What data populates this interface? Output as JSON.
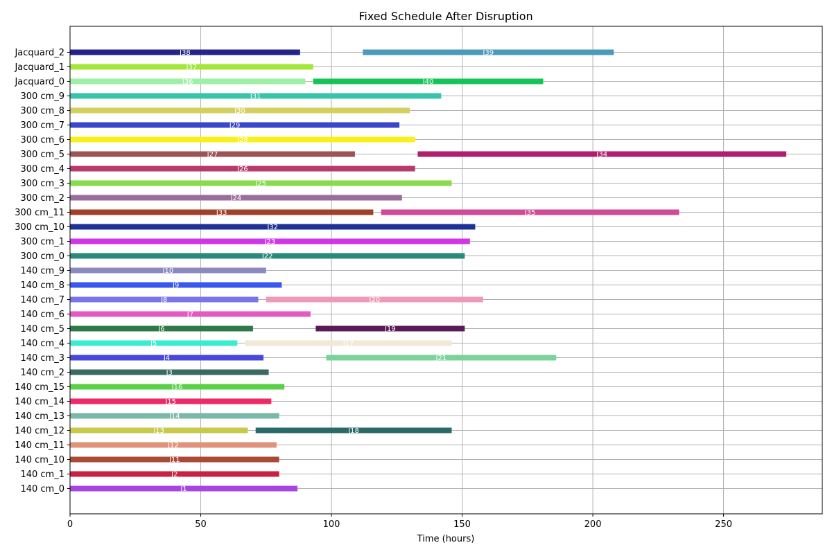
{
  "chart_data": {
    "type": "gantt",
    "title": "Fixed Schedule After Disruption",
    "xlabel": "Time (hours)",
    "ylabel": "",
    "xlim": [
      0,
      288
    ],
    "xticks": [
      0,
      50,
      100,
      150,
      200,
      250
    ],
    "grid": true,
    "machines": [
      "140 cm_0",
      "140 cm_1",
      "140 cm_10",
      "140 cm_11",
      "140 cm_12",
      "140 cm_13",
      "140 cm_14",
      "140 cm_15",
      "140 cm_2",
      "140 cm_3",
      "140 cm_4",
      "140 cm_5",
      "140 cm_6",
      "140 cm_7",
      "140 cm_8",
      "140 cm_9",
      "300 cm_0",
      "300 cm_1",
      "300 cm_10",
      "300 cm_11",
      "300 cm_2",
      "300 cm_3",
      "300 cm_4",
      "300 cm_5",
      "300 cm_6",
      "300 cm_7",
      "300 cm_8",
      "300 cm_9",
      "Jacquard_0",
      "Jacquard_1",
      "Jacquard_2"
    ],
    "tasks": [
      {
        "machine": "140 cm_0",
        "label": "J1",
        "start": 0,
        "end": 87,
        "color": "#a845e0"
      },
      {
        "machine": "140 cm_1",
        "label": "J2",
        "start": 0,
        "end": 80,
        "color": "#cc2040"
      },
      {
        "machine": "140 cm_10",
        "label": "J11",
        "start": 0,
        "end": 80,
        "color": "#a84a35"
      },
      {
        "machine": "140 cm_11",
        "label": "J12",
        "start": 0,
        "end": 79,
        "color": "#e0937a"
      },
      {
        "machine": "140 cm_12",
        "label": "J13",
        "start": 0,
        "end": 68,
        "color": "#c8c84a"
      },
      {
        "machine": "140 cm_12",
        "label": "J18",
        "start": 71,
        "end": 146,
        "color": "#2a6a66"
      },
      {
        "machine": "140 cm_13",
        "label": "J14",
        "start": 0,
        "end": 80,
        "color": "#7ab8a8"
      },
      {
        "machine": "140 cm_14",
        "label": "J15",
        "start": 0,
        "end": 77,
        "color": "#ec2a6a"
      },
      {
        "machine": "140 cm_15",
        "label": "J16",
        "start": 0,
        "end": 82,
        "color": "#5ad048"
      },
      {
        "machine": "140 cm_2",
        "label": "J3",
        "start": 0,
        "end": 76,
        "color": "#3a6a62"
      },
      {
        "machine": "140 cm_3",
        "label": "J4",
        "start": 0,
        "end": 74,
        "color": "#4848dc"
      },
      {
        "machine": "140 cm_3",
        "label": "J21",
        "start": 98,
        "end": 186,
        "color": "#7ad49a"
      },
      {
        "machine": "140 cm_4",
        "label": "J5",
        "start": 0,
        "end": 64,
        "color": "#3aecd2"
      },
      {
        "machine": "140 cm_4",
        "label": "J17",
        "start": 67,
        "end": 146,
        "color": "#f2e8d8"
      },
      {
        "machine": "140 cm_5",
        "label": "J6",
        "start": 0,
        "end": 70,
        "color": "#2e7a46"
      },
      {
        "machine": "140 cm_5",
        "label": "J19",
        "start": 94,
        "end": 151,
        "color": "#5a1a56"
      },
      {
        "machine": "140 cm_6",
        "label": "J7",
        "start": 0,
        "end": 92,
        "color": "#e658c4"
      },
      {
        "machine": "140 cm_7",
        "label": "J8",
        "start": 0,
        "end": 72,
        "color": "#7a74e8"
      },
      {
        "machine": "140 cm_7",
        "label": "J20",
        "start": 75,
        "end": 158,
        "color": "#ec9ab8"
      },
      {
        "machine": "140 cm_8",
        "label": "J9",
        "start": 0,
        "end": 81,
        "color": "#3858f0"
      },
      {
        "machine": "140 cm_9",
        "label": "J10",
        "start": 0,
        "end": 75,
        "color": "#8a8ac0"
      },
      {
        "machine": "300 cm_0",
        "label": "J22",
        "start": 0,
        "end": 151,
        "color": "#2a8a7a"
      },
      {
        "machine": "300 cm_1",
        "label": "J23",
        "start": 0,
        "end": 153,
        "color": "#d036e6"
      },
      {
        "machine": "300 cm_10",
        "label": "J32",
        "start": 0,
        "end": 155,
        "color": "#1e3296"
      },
      {
        "machine": "300 cm_11",
        "label": "J33",
        "start": 0,
        "end": 116,
        "color": "#a04028"
      },
      {
        "machine": "300 cm_11",
        "label": "J35",
        "start": 119,
        "end": 233,
        "color": "#d04a98"
      },
      {
        "machine": "300 cm_2",
        "label": "J24",
        "start": 0,
        "end": 127,
        "color": "#9a6e9c"
      },
      {
        "machine": "300 cm_3",
        "label": "J25",
        "start": 0,
        "end": 146,
        "color": "#86dc4a"
      },
      {
        "machine": "300 cm_4",
        "label": "J26",
        "start": 0,
        "end": 132,
        "color": "#b83a6a"
      },
      {
        "machine": "300 cm_5",
        "label": "J27",
        "start": 0,
        "end": 109,
        "color": "#9e5454"
      },
      {
        "machine": "300 cm_5",
        "label": "J34",
        "start": 133,
        "end": 274,
        "color": "#b01e6e"
      },
      {
        "machine": "300 cm_6",
        "label": "J28",
        "start": 0,
        "end": 132,
        "color": "#f8f01a"
      },
      {
        "machine": "300 cm_7",
        "label": "J29",
        "start": 0,
        "end": 126,
        "color": "#3a46cc"
      },
      {
        "machine": "300 cm_8",
        "label": "J30",
        "start": 0,
        "end": 130,
        "color": "#d4d060"
      },
      {
        "machine": "300 cm_9",
        "label": "J31",
        "start": 0,
        "end": 142,
        "color": "#36c4aa"
      },
      {
        "machine": "Jacquard_0",
        "label": "J36",
        "start": 0,
        "end": 90,
        "color": "#9ef0a6"
      },
      {
        "machine": "Jacquard_0",
        "label": "J40",
        "start": 93,
        "end": 181,
        "color": "#14c456"
      },
      {
        "machine": "Jacquard_1",
        "label": "J37",
        "start": 0,
        "end": 93,
        "color": "#a4e63a"
      },
      {
        "machine": "Jacquard_2",
        "label": "J38",
        "start": 0,
        "end": 88,
        "color": "#24248a"
      },
      {
        "machine": "Jacquard_2",
        "label": "J39",
        "start": 112,
        "end": 208,
        "color": "#4a9ab8"
      }
    ]
  }
}
